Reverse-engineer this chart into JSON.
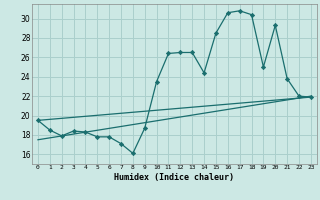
{
  "background_color": "#cce8e4",
  "grid_color": "#aacfcc",
  "line_color": "#1a6e6e",
  "xlabel": "Humidex (Indice chaleur)",
  "xlim": [
    -0.5,
    23.5
  ],
  "ylim": [
    15.0,
    31.5
  ],
  "yticks": [
    16,
    18,
    20,
    22,
    24,
    26,
    28,
    30
  ],
  "xticks": [
    0,
    1,
    2,
    3,
    4,
    5,
    6,
    7,
    8,
    9,
    10,
    11,
    12,
    13,
    14,
    15,
    16,
    17,
    18,
    19,
    20,
    21,
    22,
    23
  ],
  "series1_x": [
    0,
    1,
    2,
    3,
    4,
    5,
    6,
    7,
    8,
    9,
    10,
    11,
    12,
    13,
    14,
    15,
    16,
    17,
    18,
    19,
    20,
    21,
    22,
    23
  ],
  "series1_y": [
    19.5,
    18.5,
    17.9,
    18.4,
    18.3,
    17.8,
    17.8,
    17.1,
    16.1,
    18.7,
    23.5,
    26.4,
    26.5,
    26.5,
    24.4,
    28.5,
    30.6,
    30.8,
    30.4,
    25.0,
    29.3,
    23.8,
    22.0,
    21.9
  ],
  "series2_x": [
    0,
    23
  ],
  "series2_y": [
    19.5,
    21.9
  ],
  "series3_x": [
    0,
    23
  ],
  "series3_y": [
    17.5,
    22.0
  ]
}
